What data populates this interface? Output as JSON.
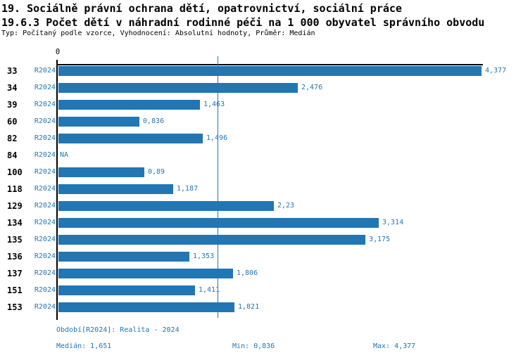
{
  "header": {
    "title_line1": "19. Sociálně právní ochrana dětí, opatrovnictví, sociální práce",
    "title_line2": "19.6.3 Počet dětí v náhradní rodinné péči na 1 000 obyvatel správního obvodu",
    "subtitle": "Typ: Počítaný podle vzorce, Vyhodnocení: Absolutní hodnoty, Průměr: Medián"
  },
  "chart_data": {
    "type": "bar",
    "orientation": "horizontal",
    "title": "19.6.3 Počet dětí v náhradní rodinné péči na 1 000 obyvatel správního obvodu",
    "x_axis": {
      "origin_label": "0",
      "min": 0,
      "max": 4.377,
      "gridlines": false
    },
    "median_line_value": 1.651,
    "period_label": "R2024",
    "categories": [
      "33",
      "34",
      "39",
      "60",
      "82",
      "84",
      "100",
      "118",
      "129",
      "134",
      "135",
      "136",
      "137",
      "151",
      "153"
    ],
    "values": [
      4.377,
      2.476,
      1.463,
      0.836,
      1.496,
      null,
      0.89,
      1.187,
      2.23,
      3.314,
      3.175,
      1.353,
      1.806,
      1.411,
      1.821
    ],
    "value_labels": [
      "4,377",
      "2,476",
      "1,463",
      "0,836",
      "1,496",
      "NA",
      "0,89",
      "1,187",
      "2,23",
      "3,314",
      "3,175",
      "1,353",
      "1,806",
      "1,411",
      "1,821"
    ],
    "bar_color": "#2276b4"
  },
  "footer": {
    "period_info": "Období[R2024]: Realita - 2024",
    "median": "Medián: 1,651",
    "min": "Min: 0,836",
    "max": "Max: 4,377"
  },
  "colors": {
    "accent": "#2276b4",
    "axis": "#000000",
    "background": "#ffffff"
  }
}
